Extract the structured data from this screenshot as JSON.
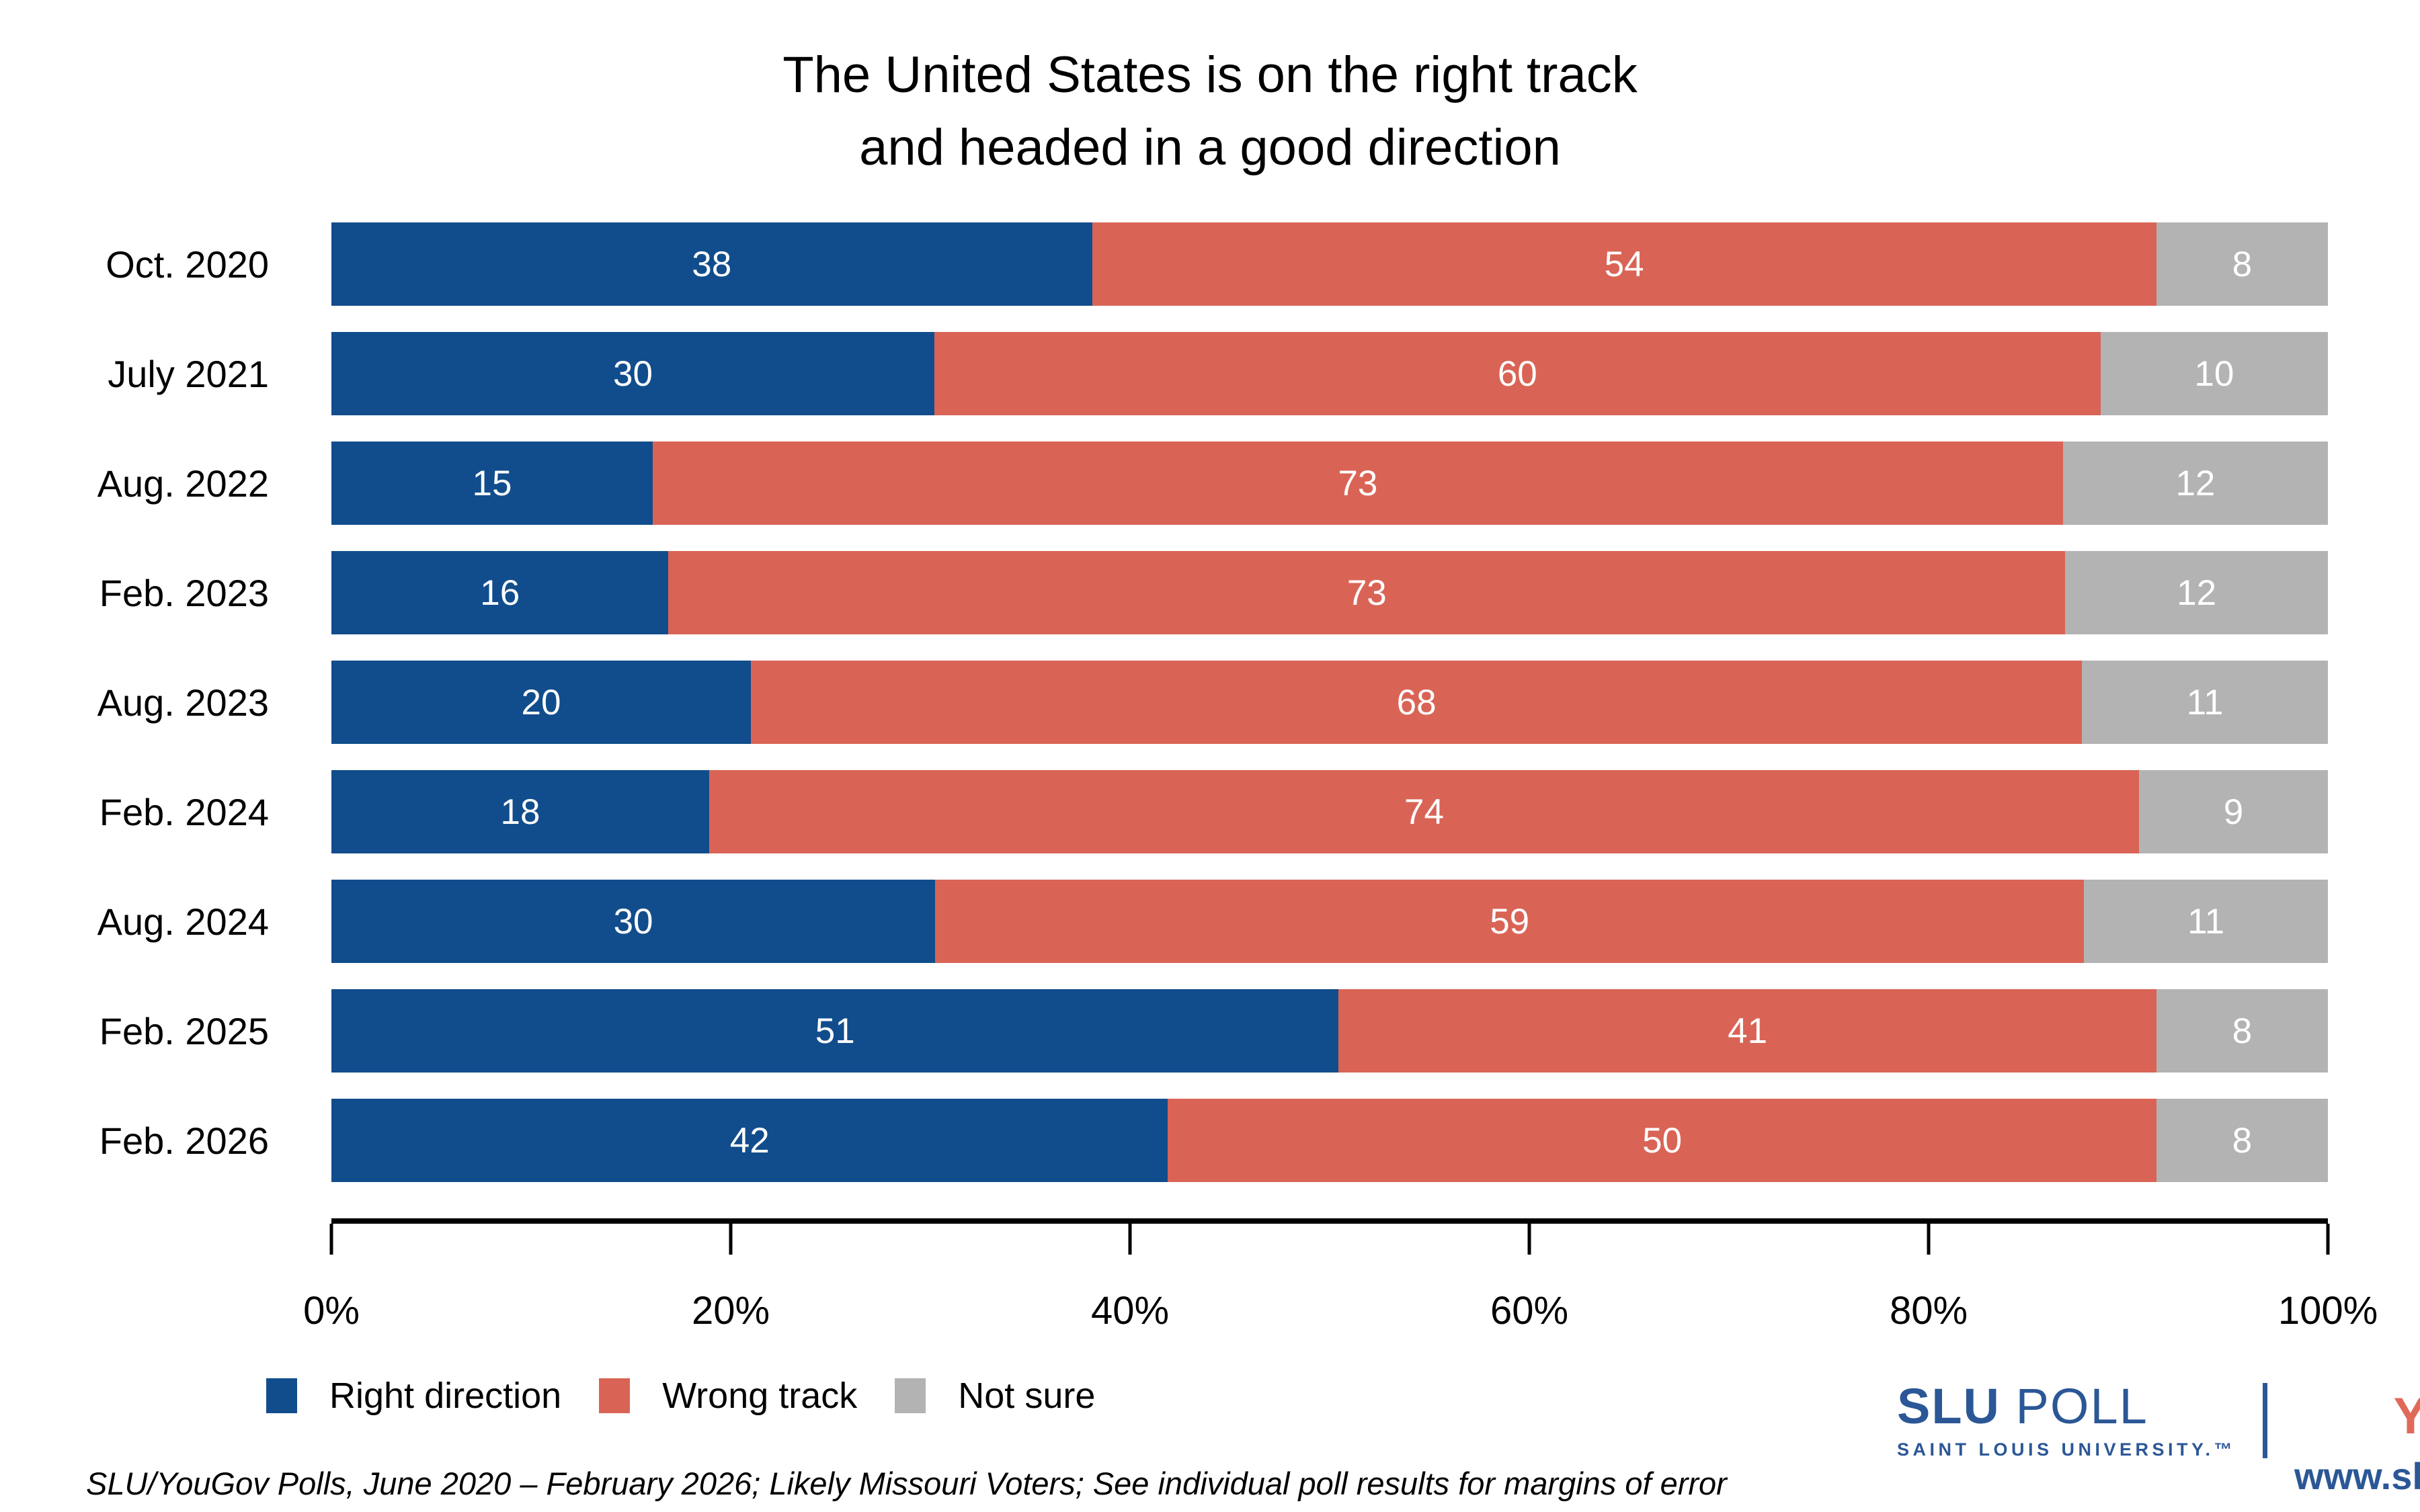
{
  "title": {
    "line1": "The United States is on the right track",
    "line2": "and headed in a good direction"
  },
  "chart_data": {
    "type": "bar",
    "orientation": "horizontal-stacked",
    "categories": [
      "Oct. 2020",
      "July 2021",
      "Aug. 2022",
      "Feb. 2023",
      "Aug. 2023",
      "Feb. 2024",
      "Aug. 2024",
      "Feb. 2025",
      "Feb. 2026"
    ],
    "series": [
      {
        "name": "Right direction",
        "color": "#114D8C",
        "values": [
          38,
          30,
          15,
          16,
          20,
          18,
          30,
          51,
          42
        ]
      },
      {
        "name": "Wrong track",
        "color": "#D96456",
        "values": [
          54,
          60,
          73,
          73,
          68,
          74,
          59,
          41,
          50
        ]
      },
      {
        "name": "Not sure",
        "color": "#B3B3B3",
        "values": [
          8,
          10,
          12,
          12,
          11,
          9,
          11,
          8,
          8
        ]
      }
    ],
    "title": "The United States is on the right track and headed in a good direction",
    "xlabel": "",
    "ylabel": "",
    "x_axis": {
      "range": [
        0,
        100
      ],
      "ticks": [
        "0%",
        "20%",
        "40%",
        "60%",
        "80%",
        "100%"
      ]
    },
    "grid": false,
    "legend_position": "bottom-left",
    "value_labels": "white, centered inside segments"
  },
  "footnote": "SLU/YouGov Polls, June 2020 – February 2026; Likely Missouri Voters; See individual poll results for margins of error",
  "branding": {
    "slu": "SLU",
    "poll": " POLL",
    "slu_subtitle": "SAINT LOUIS UNIVERSITY.™",
    "yougov": "YouGov",
    "yougov_reg": "®",
    "url": "www.slu.edu/poll",
    "slu_blue": "#2B5796",
    "yougov_red": "#E0695A"
  }
}
